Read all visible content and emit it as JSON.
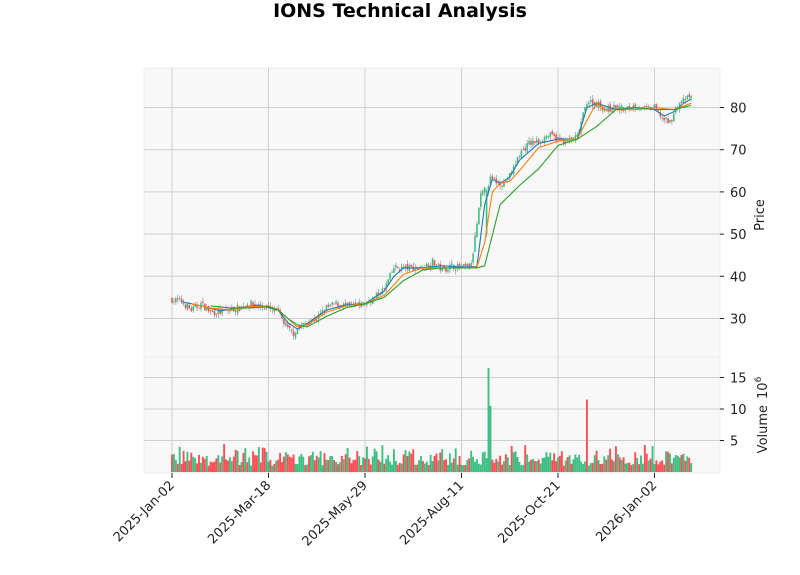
{
  "title": "IONS Technical Analysis",
  "colors": {
    "up": "#3dbf84",
    "down": "#ff4f55",
    "wick": "#888888",
    "ma_short": "#1f77b4",
    "ma_mid": "#ff7f0e",
    "ma_long": "#2ca02c",
    "panel_bg": "#f8f8f8",
    "grid": "#d0d0d0"
  },
  "chart_data": [
    {
      "type": "candlestick",
      "title": "IONS Technical Analysis",
      "xlabel": "",
      "ylabel": "Price",
      "ylim": [
        22,
        89
      ],
      "yticks": [
        30,
        40,
        50,
        60,
        70,
        80
      ],
      "xticks": [
        "2025-Jan-02",
        "2025-Mar-18",
        "2025-May-29",
        "2025-Aug-11",
        "2025-Oct-21",
        "2026-Jan-02"
      ],
      "xtick_index": [
        0,
        50,
        100,
        150,
        200,
        250
      ],
      "grid": true,
      "n_bars": 270,
      "close_samples": {
        "index": [
          0,
          5,
          10,
          15,
          20,
          25,
          30,
          35,
          40,
          45,
          50,
          55,
          60,
          63,
          66,
          70,
          75,
          80,
          85,
          90,
          95,
          100,
          105,
          110,
          115,
          120,
          125,
          130,
          135,
          140,
          145,
          150,
          155,
          160,
          163,
          165,
          168,
          172,
          176,
          180,
          185,
          190,
          195,
          200,
          205,
          210,
          215,
          220,
          225,
          230,
          235,
          240,
          245,
          250,
          255,
          258,
          262,
          266,
          269
        ],
        "value": [
          34.5,
          34.0,
          32.0,
          33.5,
          31.5,
          31.5,
          32.0,
          32.5,
          33.5,
          33.0,
          32.5,
          31.5,
          27.5,
          26.5,
          28.0,
          29.0,
          30.0,
          32.5,
          33.5,
          33.0,
          33.0,
          33.5,
          35.0,
          37.0,
          42.0,
          42.0,
          42.0,
          42.0,
          43.5,
          41.5,
          42.5,
          42.0,
          42.5,
          59.0,
          61.0,
          63.0,
          62.5,
          62.0,
          64.5,
          69.0,
          71.5,
          72.0,
          73.5,
          72.5,
          72.0,
          73.0,
          81.5,
          81.0,
          79.5,
          80.0,
          79.5,
          80.5,
          79.5,
          80.0,
          77.0,
          76.5,
          80.5,
          82.0,
          82.5
        ]
      },
      "series": [
        {
          "name": "MA short",
          "color": "#1f77b4",
          "index": [
            5,
            15,
            25,
            35,
            45,
            55,
            60,
            65,
            70,
            80,
            90,
            100,
            110,
            115,
            120,
            130,
            140,
            150,
            158,
            162,
            166,
            170,
            175,
            180,
            190,
            200,
            205,
            210,
            215,
            220,
            230,
            240,
            250,
            255,
            260,
            265,
            269
          ],
          "values": [
            34.0,
            33.0,
            31.8,
            32.5,
            33.2,
            32.0,
            29.0,
            27.5,
            28.8,
            32.0,
            33.2,
            33.5,
            36.5,
            40.0,
            42.0,
            42.0,
            42.5,
            42.2,
            42.3,
            57.0,
            63.0,
            62.0,
            63.5,
            67.5,
            71.5,
            72.5,
            72.5,
            72.5,
            80.0,
            81.0,
            79.5,
            80.0,
            79.5,
            78.0,
            79.0,
            81.0,
            82.0
          ]
        },
        {
          "name": "MA mid",
          "color": "#ff7f0e",
          "index": [
            10,
            20,
            30,
            40,
            50,
            55,
            60,
            65,
            70,
            80,
            90,
            100,
            110,
            120,
            130,
            140,
            150,
            158,
            162,
            166,
            170,
            175,
            180,
            190,
            200,
            205,
            210,
            215,
            220,
            225,
            230,
            240,
            250,
            260,
            269
          ],
          "values": [
            33.5,
            32.5,
            32.0,
            32.8,
            33.0,
            32.0,
            30.0,
            28.0,
            28.5,
            31.5,
            33.0,
            33.5,
            35.5,
            40.5,
            42.0,
            42.0,
            42.0,
            42.2,
            48.0,
            60.0,
            62.0,
            62.5,
            65.0,
            70.5,
            72.0,
            72.5,
            72.5,
            77.0,
            81.0,
            79.5,
            79.5,
            79.5,
            80.0,
            79.5,
            81.0
          ]
        },
        {
          "name": "MA long",
          "color": "#2ca02c",
          "index": [
            20,
            30,
            40,
            50,
            55,
            60,
            65,
            70,
            80,
            90,
            100,
            110,
            120,
            130,
            140,
            150,
            158,
            162,
            170,
            180,
            190,
            200,
            210,
            220,
            230,
            240,
            250,
            260,
            269
          ],
          "values": [
            33.0,
            32.5,
            32.5,
            32.8,
            32.0,
            30.0,
            28.5,
            28.0,
            30.5,
            32.5,
            33.5,
            35.0,
            39.0,
            41.5,
            42.0,
            42.0,
            42.0,
            42.5,
            57.0,
            61.5,
            65.5,
            71.0,
            72.5,
            75.5,
            79.5,
            80.0,
            79.5,
            79.5,
            80.5
          ]
        }
      ]
    },
    {
      "type": "bar",
      "title": "",
      "ylabel": "Volume  10^6",
      "ylim": [
        0,
        18
      ],
      "yticks": [
        5,
        10,
        15
      ],
      "unit_multiplier": "10^6",
      "spikes": [
        {
          "index": 164,
          "value": 16.5,
          "direction": "up"
        },
        {
          "index": 165,
          "value": 10.5,
          "direction": "up"
        },
        {
          "index": 215,
          "value": 11.5,
          "direction": "down"
        }
      ],
      "baseline_volume_range": [
        1.0,
        4.5
      ]
    }
  ],
  "axes": {
    "price_label": "Price",
    "volume_label": "Volume",
    "volume_exponent": "6",
    "price_ticks": [
      "30",
      "40",
      "50",
      "60",
      "70",
      "80"
    ],
    "volume_ticks": [
      "5",
      "10",
      "15"
    ],
    "x_ticks": [
      "2025-Jan-02",
      "2025-Mar-18",
      "2025-May-29",
      "2025-Aug-11",
      "2025-Oct-21",
      "2026-Jan-02"
    ]
  }
}
